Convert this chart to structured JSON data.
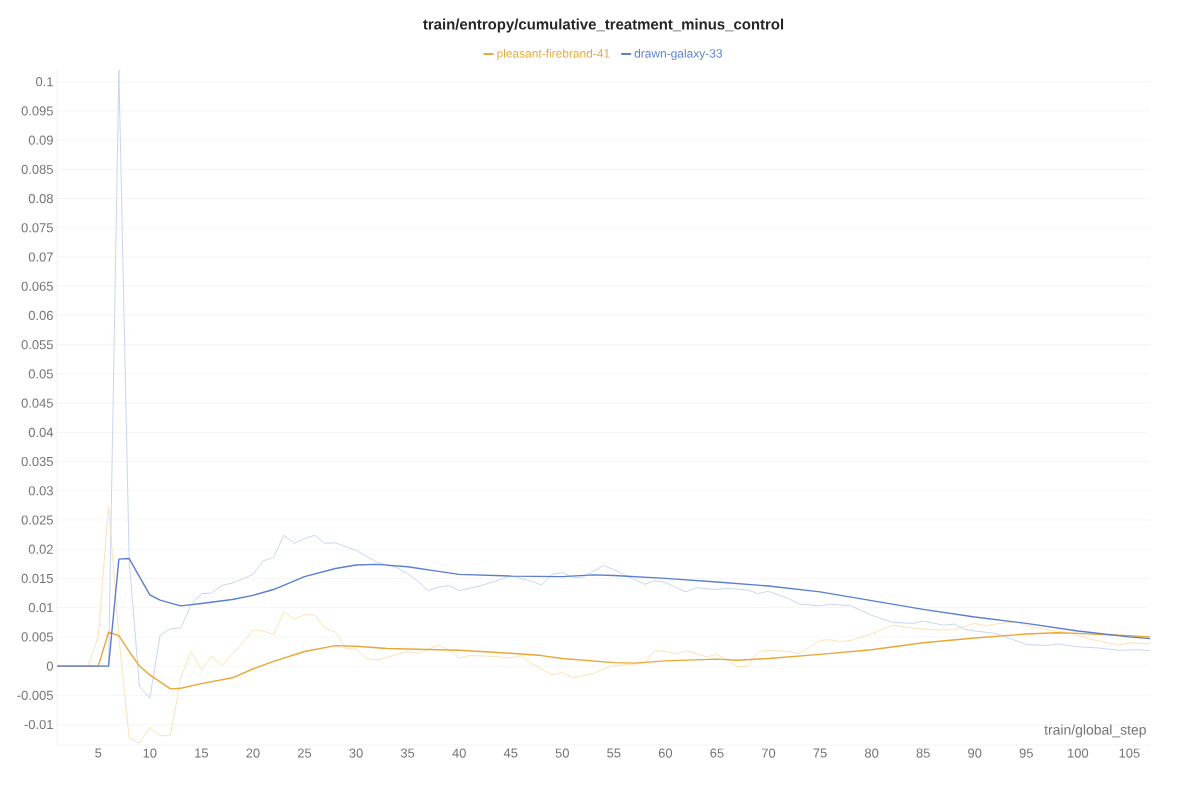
{
  "chart_data": {
    "type": "line",
    "title": "train/entropy/cumulative_treatment_minus_control",
    "xlabel": "train/global_step",
    "xlim": [
      1,
      107
    ],
    "ylim": [
      -0.0135,
      0.102
    ],
    "xticks": [
      5,
      10,
      15,
      20,
      25,
      30,
      35,
      40,
      45,
      50,
      55,
      60,
      65,
      70,
      75,
      80,
      85,
      90,
      95,
      100,
      105
    ],
    "yticks": [
      -0.01,
      -0.005,
      0,
      0.005,
      0.01,
      0.015,
      0.02,
      0.025,
      0.03,
      0.035,
      0.04,
      0.045,
      0.05,
      0.055,
      0.06,
      0.065,
      0.07,
      0.075,
      0.08,
      0.085,
      0.09,
      0.095,
      0.1
    ],
    "grid": "y",
    "legend": "top",
    "line_style": "solid",
    "series": [
      {
        "color": "#fbe3b5",
        "x": [
          1,
          4,
          5,
          6,
          7,
          8,
          9,
          10,
          11,
          12,
          13,
          14,
          15,
          16,
          17,
          18,
          19,
          20,
          21,
          22,
          23,
          24,
          25,
          26,
          27,
          28,
          29,
          30,
          31,
          32,
          33,
          35,
          36,
          38,
          39,
          40,
          41,
          43,
          45,
          46,
          47,
          48,
          49,
          50,
          51,
          53,
          54,
          55,
          57,
          58,
          59,
          60,
          61,
          62,
          64,
          65,
          66,
          67,
          68,
          69,
          70,
          72,
          73,
          75,
          76,
          77,
          78,
          80,
          82,
          84,
          86,
          88,
          89,
          90,
          91,
          92,
          94,
          95,
          97,
          99,
          101,
          102,
          104,
          105,
          107
        ],
        "values": [
          0,
          0,
          0.005,
          0.0275,
          0.005,
          -0.0123,
          -0.0132,
          -0.0105,
          -0.0119,
          -0.0119,
          -0.002,
          0.0025,
          -0.0006,
          0.0017,
          0.0001,
          0.002,
          0.004,
          0.0062,
          0.006,
          0.0054,
          0.0093,
          0.008,
          0.0088,
          0.0087,
          0.0065,
          0.0058,
          0.003,
          0.0029,
          0.0013,
          0.001,
          0.0015,
          0.0025,
          0.0022,
          0.0036,
          0.0028,
          0.0014,
          0.0018,
          0.0017,
          0.0014,
          0.0018,
          0.0005,
          -0.0005,
          -0.0015,
          -0.0011,
          -0.002,
          -0.0013,
          -0.0005,
          0.0001,
          0.0003,
          0.0006,
          0.0027,
          0.0025,
          0.0021,
          0.0026,
          0.0016,
          0.002,
          0.001,
          -0.0001,
          0,
          0.0025,
          0.0027,
          0.0025,
          0.0021,
          0.0044,
          0.0045,
          0.0042,
          0.0044,
          0.0055,
          0.007,
          0.0065,
          0.0062,
          0.0062,
          0.0068,
          0.0073,
          0.0069,
          0.0072,
          0.0076,
          0.007,
          0.0062,
          0.0058,
          0.0047,
          0.0043,
          0.0036,
          0.004,
          0.0038
        ]
      },
      {
        "color": "#c9d5f0",
        "x": [
          1,
          6,
          7,
          8,
          9,
          10,
          11,
          12,
          13,
          14,
          15,
          16,
          17,
          18,
          19,
          20,
          21,
          22,
          23,
          24,
          25,
          26,
          27,
          28,
          30,
          32,
          34,
          35,
          36,
          37,
          38,
          39,
          40,
          42,
          44,
          45,
          47,
          48,
          49,
          50,
          51,
          52,
          54,
          55,
          57,
          58,
          59,
          60,
          62,
          63,
          65,
          66,
          68,
          69,
          70,
          72,
          73,
          75,
          76,
          78,
          80,
          82,
          84,
          85,
          87,
          88,
          89,
          90,
          92,
          93,
          95,
          97,
          98,
          100,
          102,
          104,
          106,
          107
        ],
        "values": [
          0,
          0,
          0.102,
          0.018,
          -0.0035,
          -0.0055,
          0.0053,
          0.0064,
          0.0065,
          0.0105,
          0.0124,
          0.0125,
          0.0138,
          0.0142,
          0.0149,
          0.0157,
          0.018,
          0.0186,
          0.0224,
          0.021,
          0.0218,
          0.0224,
          0.021,
          0.0211,
          0.0198,
          0.0178,
          0.0168,
          0.0158,
          0.0145,
          0.0129,
          0.0135,
          0.0138,
          0.0129,
          0.0137,
          0.0148,
          0.0155,
          0.0145,
          0.0139,
          0.0157,
          0.016,
          0.0152,
          0.0152,
          0.0172,
          0.0165,
          0.0148,
          0.014,
          0.0146,
          0.0143,
          0.0127,
          0.0134,
          0.0131,
          0.0133,
          0.013,
          0.0124,
          0.0128,
          0.0115,
          0.0106,
          0.0103,
          0.0106,
          0.0103,
          0.0087,
          0.0075,
          0.0073,
          0.0077,
          0.007,
          0.0072,
          0.0063,
          0.006,
          0.0056,
          0.005,
          0.0037,
          0.0035,
          0.0038,
          0.0033,
          0.0031,
          0.0027,
          0.0028,
          0.0026
        ]
      },
      {
        "name": "pleasant-firebrand-41",
        "color": "#e8a838",
        "x": [
          1,
          5,
          6,
          7,
          8,
          9,
          10,
          12,
          13,
          15,
          18,
          20,
          22,
          25,
          28,
          30,
          33,
          38,
          40,
          45,
          48,
          50,
          55,
          57,
          60,
          65,
          67,
          70,
          75,
          80,
          85,
          90,
          95,
          98,
          100,
          105,
          107
        ],
        "values": [
          0,
          0,
          0.0058,
          0.0052,
          0.0025,
          0,
          -0.0015,
          -0.0039,
          -0.0038,
          -0.003,
          -0.002,
          -0.0005,
          0.0008,
          0.0025,
          0.0035,
          0.0034,
          0.003,
          0.0028,
          0.0027,
          0.0022,
          0.0018,
          0.0013,
          0.0006,
          0.0005,
          0.0009,
          0.0012,
          0.001,
          0.0013,
          0.002,
          0.0028,
          0.004,
          0.0048,
          0.0055,
          0.0057,
          0.0056,
          0.0052,
          0.005
        ]
      },
      {
        "name": "drawn-galaxy-33",
        "color": "#5a7fd0",
        "x": [
          1,
          6,
          7,
          8,
          10,
          11,
          13,
          15,
          18,
          20,
          22,
          25,
          28,
          30,
          32,
          35,
          38,
          40,
          45,
          50,
          53,
          55,
          60,
          65,
          70,
          75,
          80,
          85,
          90,
          95,
          100,
          105,
          107
        ],
        "values": [
          0,
          0,
          0.0183,
          0.0184,
          0.0122,
          0.0113,
          0.0103,
          0.0107,
          0.0114,
          0.0121,
          0.0131,
          0.0153,
          0.0167,
          0.0173,
          0.0174,
          0.017,
          0.0162,
          0.0157,
          0.0154,
          0.0153,
          0.0156,
          0.0155,
          0.015,
          0.0144,
          0.0137,
          0.0127,
          0.0112,
          0.0097,
          0.0084,
          0.0073,
          0.006,
          0.005,
          0.0047
        ]
      }
    ]
  }
}
